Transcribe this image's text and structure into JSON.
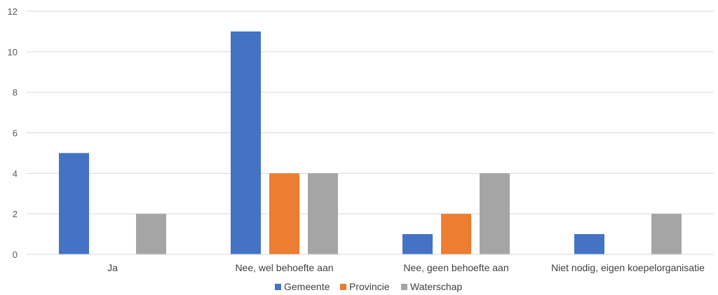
{
  "chart_data": {
    "type": "bar",
    "categories": [
      "Ja",
      "Nee, wel behoefte aan",
      "Nee, geen behoefte aan",
      "Niet nodig, eigen koepelorganisatie"
    ],
    "series": [
      {
        "name": "Gemeente",
        "color": "#4472C4",
        "values": [
          5,
          11,
          1,
          1
        ]
      },
      {
        "name": "Provincie",
        "color": "#ED7D31",
        "values": [
          0,
          4,
          2,
          0
        ]
      },
      {
        "name": "Waterschap",
        "color": "#A5A5A5",
        "values": [
          2,
          4,
          4,
          2
        ]
      }
    ],
    "yticks": [
      "0",
      "2",
      "4",
      "6",
      "8",
      "10",
      "12"
    ],
    "ylim": [
      0,
      12
    ],
    "grid": true,
    "legend": "bottom"
  }
}
